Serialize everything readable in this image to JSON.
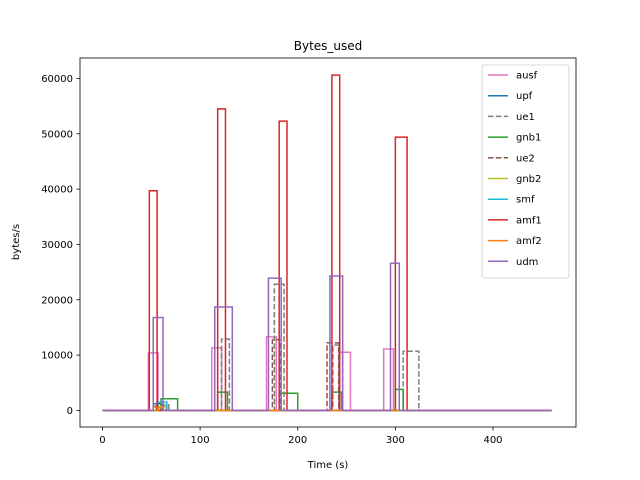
{
  "chart_data": {
    "type": "line",
    "title": "Bytes_used",
    "xlabel": "Time (s)",
    "ylabel": "bytes/s",
    "xlim": [
      -23,
      485
    ],
    "ylim": [
      -3000,
      63700
    ],
    "xticks": [
      0,
      100,
      200,
      300,
      400
    ],
    "yticks": [
      0,
      10000,
      20000,
      30000,
      40000,
      50000,
      60000
    ],
    "xtick_labels": [
      "0",
      "100",
      "200",
      "300",
      "400"
    ],
    "ytick_labels": [
      "0",
      "10000",
      "20000",
      "30000",
      "40000",
      "50000",
      "60000"
    ],
    "grid": false,
    "legend_position": "upper-right",
    "series": [
      {
        "name": "ausf",
        "color": "#e377c2",
        "dash": "solid",
        "x": [
          0,
          47,
          47,
          57,
          57,
          112,
          112,
          122,
          122,
          168,
          168,
          178,
          178,
          242,
          242,
          254,
          254,
          288,
          288,
          298,
          298,
          460
        ],
        "y": [
          0,
          0,
          10400,
          10400,
          0,
          0,
          11300,
          11300,
          0,
          0,
          13300,
          13300,
          0,
          0,
          10500,
          10500,
          0,
          0,
          11100,
          11100,
          0,
          0
        ]
      },
      {
        "name": "upf",
        "color": "#1f77b4",
        "dash": "solid",
        "x": [
          0,
          52,
          52,
          60,
          60,
          460
        ],
        "y": [
          0,
          0,
          1200,
          1200,
          0,
          0
        ]
      },
      {
        "name": "ue1",
        "color": "#7f7f7f",
        "dash": "dashed",
        "x": [
          0,
          60,
          60,
          68,
          68,
          122,
          122,
          130,
          130,
          176,
          176,
          186,
          186,
          236,
          236,
          246,
          246,
          308,
          308,
          324,
          324,
          460
        ],
        "y": [
          0,
          0,
          1000,
          1000,
          0,
          0,
          12900,
          12900,
          0,
          0,
          22800,
          22800,
          0,
          0,
          11800,
          11800,
          0,
          0,
          10700,
          10700,
          0,
          0
        ]
      },
      {
        "name": "gnb1",
        "color": "#2ca02c",
        "dash": "solid",
        "x": [
          0,
          60,
          60,
          67,
          67,
          77,
          77,
          118,
          118,
          128,
          128,
          183,
          183,
          200,
          200,
          235,
          235,
          245,
          245,
          300,
          300,
          308,
          308,
          460
        ],
        "y": [
          0,
          0,
          2100,
          2100,
          2100,
          2100,
          0,
          0,
          3300,
          3300,
          0,
          0,
          3100,
          3100,
          0,
          0,
          3300,
          3300,
          0,
          0,
          3800,
          3800,
          0,
          0
        ]
      },
      {
        "name": "ue2",
        "color": "#8c564b",
        "dash": "dashed",
        "x": [
          0,
          54,
          54,
          62,
          62,
          174,
          174,
          182,
          182,
          230,
          230,
          242,
          242,
          460
        ],
        "y": [
          0,
          0,
          800,
          800,
          0,
          0,
          12800,
          12800,
          0,
          0,
          12200,
          12200,
          0,
          0
        ]
      },
      {
        "name": "gnb2",
        "color": "#bcbd22",
        "dash": "solid",
        "x": [
          0,
          55,
          55,
          65,
          65,
          460
        ],
        "y": [
          0,
          0,
          700,
          700,
          0,
          0
        ]
      },
      {
        "name": "smf",
        "color": "#17becf",
        "dash": "solid",
        "x": [
          0,
          56,
          56,
          66,
          66,
          460
        ],
        "y": [
          0,
          0,
          1500,
          1500,
          0,
          0
        ]
      },
      {
        "name": "amf1",
        "color": "#d62728",
        "dash": "solid",
        "x": [
          0,
          48,
          48,
          56,
          56,
          118,
          118,
          126,
          126,
          181,
          181,
          189,
          189,
          235,
          235,
          243,
          243,
          300,
          300,
          312,
          312,
          460
        ],
        "y": [
          0,
          0,
          39700,
          39700,
          0,
          0,
          54500,
          54500,
          0,
          0,
          52300,
          52300,
          0,
          0,
          60600,
          60600,
          0,
          0,
          49400,
          49400,
          0,
          0
        ]
      },
      {
        "name": "amf2",
        "color": "#ff7f0e",
        "dash": "solid",
        "x": [
          0,
          57,
          57,
          62,
          62,
          460
        ],
        "y": [
          0,
          0,
          500,
          500,
          0,
          0
        ]
      },
      {
        "name": "udm",
        "color": "#9467bd",
        "dash": "solid",
        "x": [
          0,
          52,
          52,
          62,
          62,
          115,
          115,
          133,
          133,
          170,
          170,
          183,
          183,
          233,
          233,
          246,
          246,
          295,
          295,
          304,
          304,
          460
        ],
        "y": [
          0,
          0,
          16800,
          16800,
          0,
          0,
          18700,
          18700,
          0,
          0,
          23900,
          23900,
          0,
          0,
          24300,
          24300,
          0,
          0,
          26600,
          26600,
          0,
          0
        ]
      }
    ]
  }
}
